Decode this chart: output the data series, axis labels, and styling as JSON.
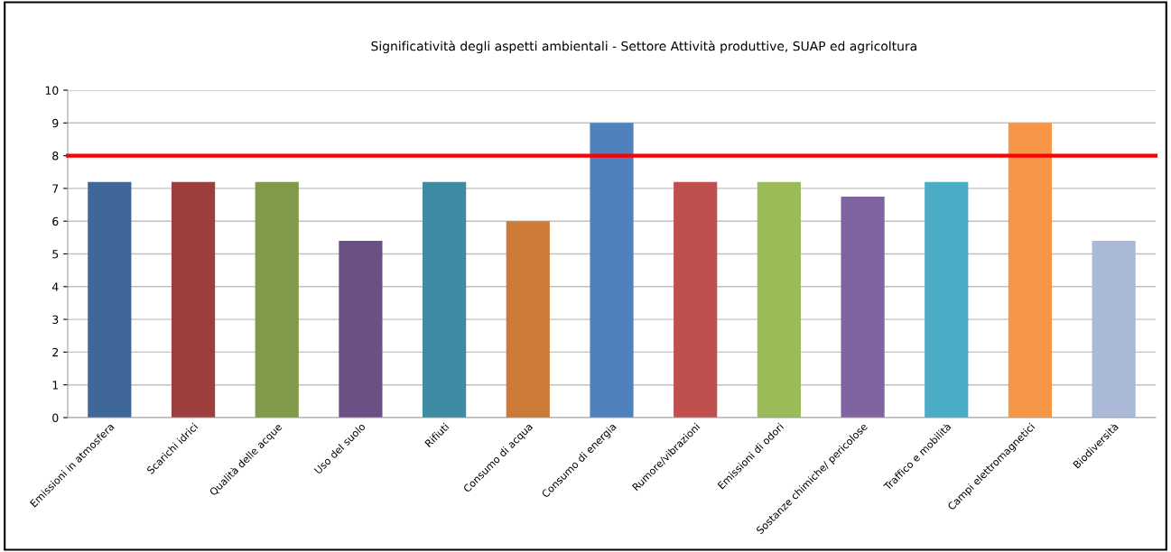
{
  "chart_data": {
    "type": "bar",
    "title": "Significatività degli aspetti ambientali - Settore Attività produttive, SUAP ed agricoltura",
    "categories": [
      "Emissioni in atmosfera",
      "Scarichi idrici",
      "Qualità delle acque",
      "Uso del suolo",
      "Rifiuti",
      "Consumo di acqua",
      "Consumo di energia",
      "Rumore/vibrazioni",
      "Emissioni di odori",
      "Sostanze chimiche/ pericolose",
      "Traffico e mobilità",
      "Campi elettromagnetici",
      "Biodiversità"
    ],
    "values": [
      7.2,
      7.2,
      7.2,
      5.4,
      7.2,
      6,
      9,
      7.2,
      7.2,
      6.75,
      7.2,
      9,
      5.4
    ],
    "colors": [
      "#3f6899",
      "#9c3f3d",
      "#7f9a48",
      "#6a5084",
      "#3d8ca3",
      "#cb7a37",
      "#4f81bd",
      "#c0504d",
      "#9bbb59",
      "#8064a2",
      "#4bacc6",
      "#f79646",
      "#a9b9d7"
    ],
    "ylim": [
      0,
      10
    ],
    "yticks": [
      0,
      1,
      2,
      3,
      4,
      5,
      6,
      7,
      8,
      9,
      10
    ],
    "grid": "y",
    "ref_lines": [
      {
        "axis": "y",
        "value": 8,
        "color": "#ff0000"
      }
    ]
  }
}
